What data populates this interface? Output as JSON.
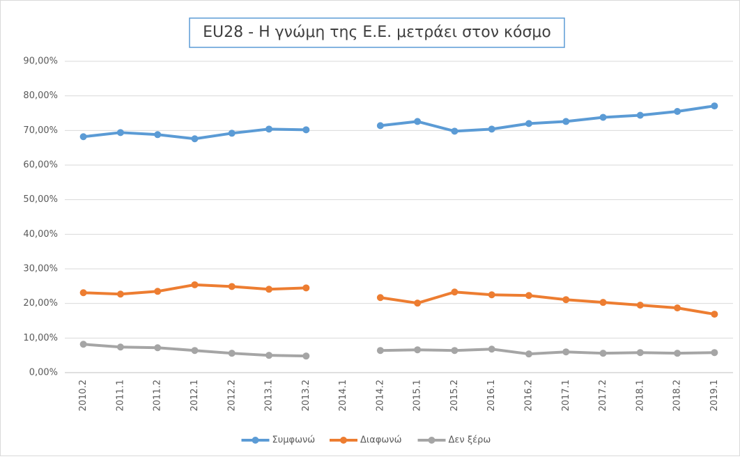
{
  "chart_data": {
    "type": "line",
    "title": "EU28 - Η γνώμη της Ε.Ε. μετράει στον κόσμο",
    "categories": [
      "2010.2",
      "2011.1",
      "2011.2",
      "2012.1",
      "2012.2",
      "2013.1",
      "2013.2",
      "2014.1",
      "2014.2",
      "2015.1",
      "2015.2",
      "2016.1",
      "2016.2",
      "2017.1",
      "2017.2",
      "2018.1",
      "2018.2",
      "2019.1"
    ],
    "series": [
      {
        "name": "Συμφωνώ",
        "color": "#5b9bd5",
        "values": [
          68.2,
          69.4,
          68.8,
          67.6,
          69.2,
          70.4,
          70.2,
          null,
          71.4,
          72.6,
          69.8,
          70.4,
          72.0,
          72.6,
          73.8,
          74.4,
          75.5,
          77.1
        ]
      },
      {
        "name": "Διαφωνώ",
        "color": "#ed7d31",
        "values": [
          23.1,
          22.7,
          23.5,
          25.4,
          24.9,
          24.1,
          24.5,
          null,
          21.7,
          20.1,
          23.3,
          22.5,
          22.3,
          21.1,
          20.3,
          19.5,
          18.7,
          16.9
        ]
      },
      {
        "name": "Δεν ξέρω",
        "color": "#a5a5a5",
        "values": [
          8.2,
          7.4,
          7.2,
          6.4,
          5.6,
          5.0,
          4.8,
          null,
          6.4,
          6.6,
          6.4,
          6.8,
          5.4,
          6.0,
          5.6,
          5.8,
          5.6,
          5.8
        ]
      }
    ],
    "ylim": [
      0,
      90
    ],
    "yticks": [
      {
        "value": 0,
        "label": "0,00%"
      },
      {
        "value": 10,
        "label": "10,00%"
      },
      {
        "value": 20,
        "label": "20,00%"
      },
      {
        "value": 30,
        "label": "30,00%"
      },
      {
        "value": 40,
        "label": "40,00%"
      },
      {
        "value": 50,
        "label": "50,00%"
      },
      {
        "value": 60,
        "label": "60,00%"
      },
      {
        "value": 70,
        "label": "70,00%"
      },
      {
        "value": 80,
        "label": "80,00%"
      },
      {
        "value": 90,
        "label": "90,00%"
      }
    ],
    "grid": true,
    "legend": "bottom"
  }
}
